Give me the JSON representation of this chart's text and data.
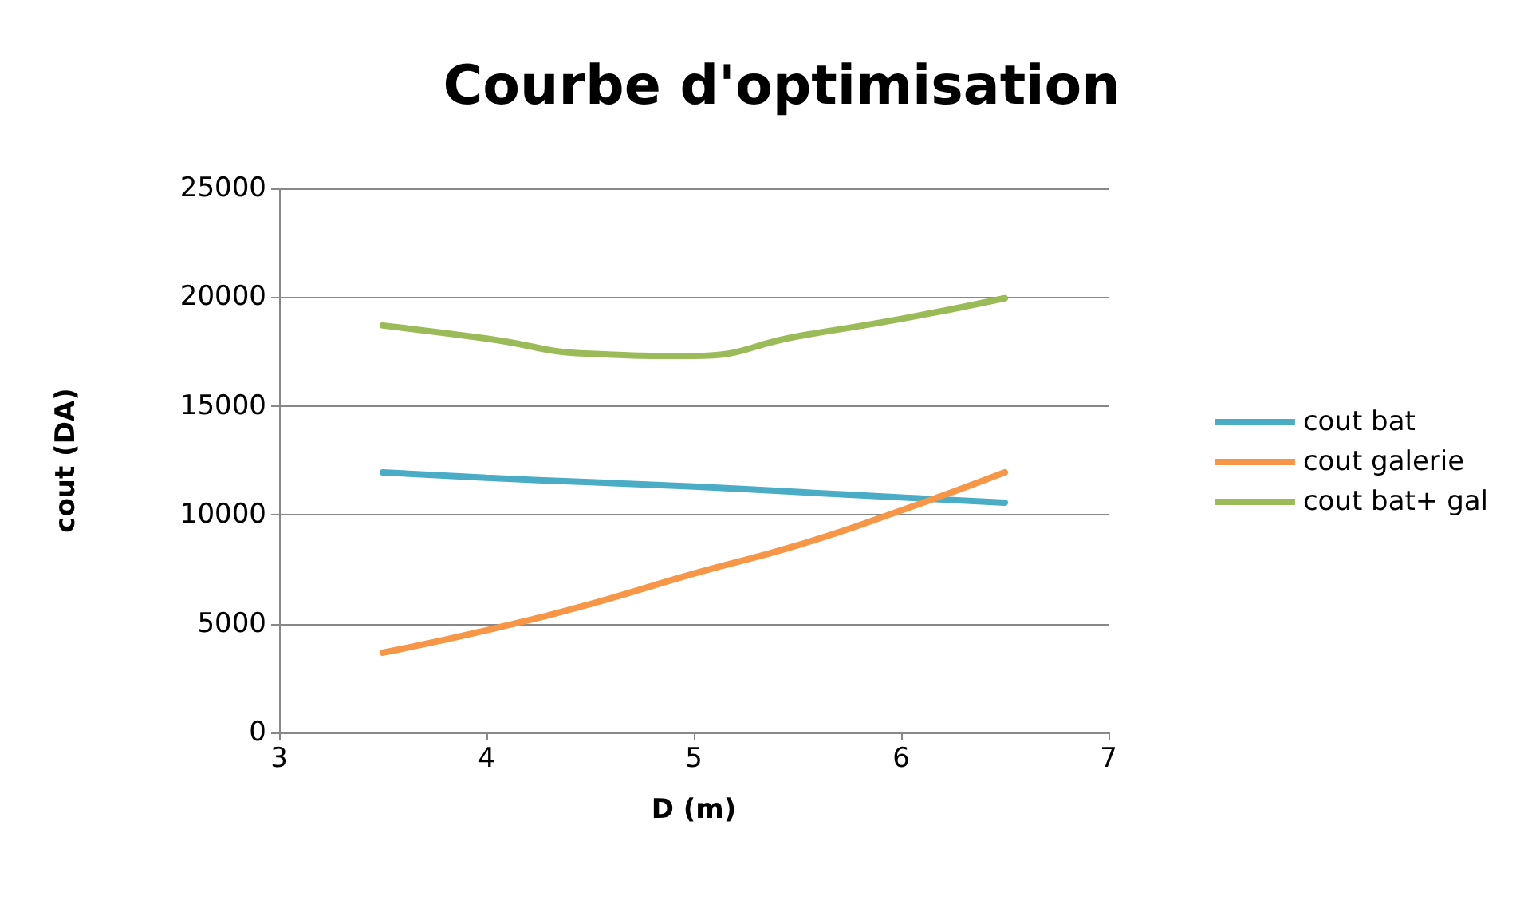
{
  "chart_data": {
    "type": "line",
    "title": "Courbe d'optimisation",
    "xlabel": "D (m)",
    "ylabel": "cout (DA)",
    "x": [
      3.5,
      4,
      4.5,
      5,
      5.5,
      6,
      6.5
    ],
    "series": [
      {
        "name": "cout bat",
        "color": "#4bacc6",
        "values": [
          11950,
          11700,
          11500,
          11300,
          11050,
          10800,
          10560
        ]
      },
      {
        "name": "cout galerie",
        "color": "#f79646",
        "values": [
          3670,
          4700,
          5900,
          7300,
          8600,
          10200,
          11950
        ]
      },
      {
        "name": "cout bat+ gal",
        "color": "#9bbb59",
        "values": [
          18700,
          18100,
          17400,
          17300,
          18200,
          19000,
          19950
        ]
      }
    ],
    "xlim": [
      3,
      7
    ],
    "xticks": [
      3,
      4,
      5,
      6,
      7
    ],
    "ylim": [
      0,
      25000
    ],
    "yticks": [
      0,
      5000,
      10000,
      15000,
      20000,
      25000
    ],
    "grid": "y",
    "legend": "right",
    "marker": "none",
    "line_style": "solid"
  }
}
